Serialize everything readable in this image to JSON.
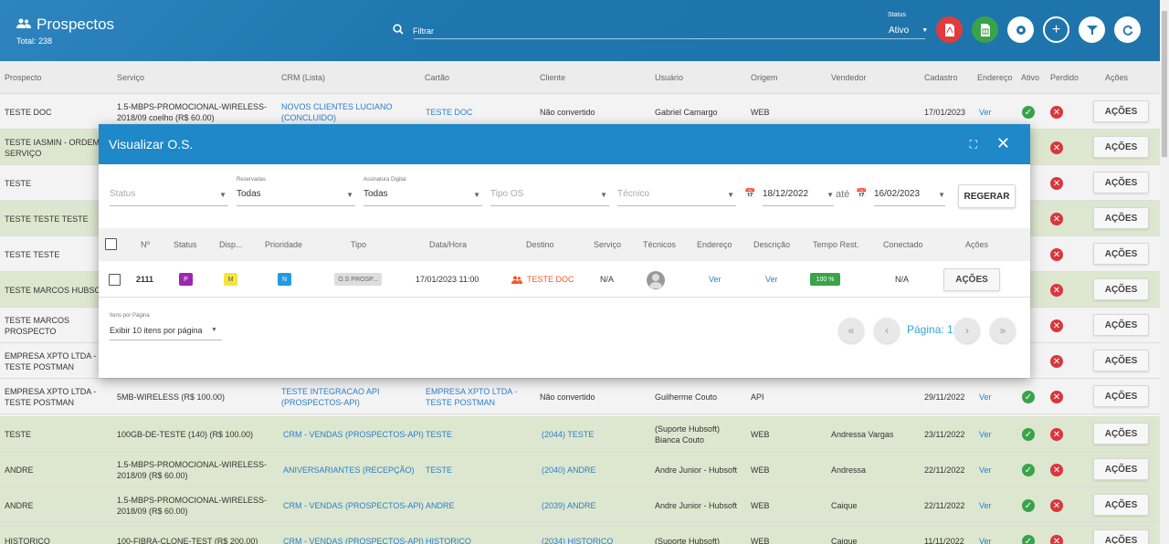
{
  "header": {
    "title": "Prospectos",
    "total": "Total: 238",
    "search_placeholder": "Filtrar",
    "status_label": "Status",
    "status_value": "Ativo",
    "buttons": [
      "pdf-icon",
      "excel-icon",
      "gear-icon",
      "plus-icon",
      "filter-icon",
      "refresh-icon"
    ]
  },
  "table": {
    "columns": [
      "Prospecto",
      "Serviço",
      "CRM (Lista)",
      "Cartão",
      "Cliente",
      "Usuário",
      "Origem",
      "Vendedor",
      "Cadastro",
      "Endereço",
      "Ativo",
      "Perdido",
      "Ações"
    ],
    "rows": [
      {
        "prospecto": "TESTE DOC",
        "servico": "1.5-MBPS-PROMOCIONAL-WIRELESS-2018/09 coelho (R$ 60.00)",
        "crm": "NOVOS CLIENTES LUCIANO (CONCLUIDO)",
        "cartao": "TESTE DOC",
        "cliente": "Não convertido",
        "usuario": "Gabriel Camargo",
        "origem": "WEB",
        "vendedor": "",
        "cadastro": "17/01/2023",
        "endereco": "Ver",
        "acoes": "AÇÕES"
      },
      {
        "prospecto": "TESTE IASMIN - ORDEM SERVIÇO",
        "acoes": "AÇÕES"
      },
      {
        "prospecto": "TESTE",
        "acoes": "AÇÕES"
      },
      {
        "prospecto": "TESTE TESTE TESTE",
        "acoes": "AÇÕES"
      },
      {
        "prospecto": "TESTE TESTE",
        "acoes": "AÇÕES"
      },
      {
        "prospecto": "TESTE MARCOS HUBSOFT",
        "acoes": "AÇÕES"
      },
      {
        "prospecto": "TESTE MARCOS PROSPECTO",
        "acoes": "AÇÕES"
      },
      {
        "prospecto": "EMPRESA XPTO LTDA - TESTE POSTMAN",
        "acoes": "AÇÕES"
      },
      {
        "prospecto": "EMPRESA XPTO LTDA - TESTE POSTMAN",
        "servico": "5MB-WIRELESS (R$ 100.00)",
        "crm": "TESTE INTEGRACAO API (PROSPECTOS-API)",
        "cartao": "EMPRESA XPTO LTDA - TESTE POSTMAN",
        "cliente": "Não convertido",
        "usuario": "Guilherme Couto",
        "origem": "API",
        "vendedor": "",
        "cadastro": "29/11/2022",
        "endereco": "Ver",
        "acoes": "AÇÕES"
      },
      {
        "prospecto": "TESTE",
        "servico": "100GB-DE-TESTE (140) (R$ 100.00)",
        "crm": "CRM - VENDAS (PROSPECTOS-API)",
        "cartao": "TESTE",
        "cliente": "(2044) TESTE",
        "usuario": "(Suporte Hubsoft) Bianca Couto",
        "origem": "WEB",
        "vendedor": "Andressa Vargas",
        "cadastro": "23/11/2022",
        "endereco": "Ver",
        "acoes": "AÇÕES"
      },
      {
        "prospecto": "ANDRE",
        "servico": "1.5-MBPS-PROMOCIONAL-WIRELESS-2018/09 (R$ 60.00)",
        "crm": "ANIVERSARIANTES (RECEPÇÃO)",
        "cartao": "TESTE",
        "cliente": "(2040) ANDRE",
        "usuario": "Andre Junior - Hubsoft",
        "origem": "WEB",
        "vendedor": "Andressa",
        "cadastro": "22/11/2022",
        "endereco": "Ver",
        "acoes": "AÇÕES"
      },
      {
        "prospecto": "ANDRE",
        "servico": "1.5-MBPS-PROMOCIONAL-WIRELESS-2018/09 (R$ 60.00)",
        "crm": "CRM - VENDAS (PROSPECTOS-API)",
        "cartao": "ANDRE",
        "cliente": "(2039) ANDRE",
        "usuario": "Andre Junior - Hubsoft",
        "origem": "WEB",
        "vendedor": "Caique",
        "cadastro": "22/11/2022",
        "endereco": "Ver",
        "acoes": "AÇÕES"
      },
      {
        "prospecto": "HISTORICO",
        "servico": "100-FIBRA-CLONE-TEST (R$ 200.00)",
        "crm": "CRM - VENDAS (PROSPECTOS-API)",
        "cartao": "HISTORICO",
        "cliente": "(2034) HISTORICO",
        "usuario": "(Suporte Hubsoft)",
        "origem": "WEB",
        "vendedor": "Caique",
        "cadastro": "11/11/2022",
        "endereco": "Ver",
        "acoes": "AÇÕES"
      }
    ]
  },
  "modal": {
    "title": "Visualizar O.S.",
    "filters": {
      "status_placeholder": "Status",
      "reservadas_label": "Reservadas",
      "reservadas_value": "Todas",
      "assinatura_label": "Assinatura Digital",
      "assinatura_value": "Todas",
      "tipo_placeholder": "Tipo OS",
      "tecnico_placeholder": "Técnico",
      "date_from": "18/12/2022",
      "ate": "até",
      "date_to": "16/02/2023",
      "regerar": "REGERAR"
    },
    "columns": [
      "Nº",
      "Status",
      "Disp...",
      "Prioridade",
      "Tipo",
      "Data/Hora",
      "Destino",
      "Serviço",
      "Técnicos",
      "Endereço",
      "Descrição",
      "Tempo Rest.",
      "Conectado",
      "Ações"
    ],
    "row": {
      "numero": "2111",
      "status": "P",
      "disp": "M",
      "prioridade": "N",
      "tipo": "O.S PROSP...",
      "data_hora": "17/01/2023 11:00",
      "destino": "TESTE DOC",
      "servico": "N/A",
      "endereco": "Ver",
      "descricao": "Ver",
      "tempo_rest": "100 %",
      "conectado": "N/A",
      "acoes": "AÇÕES"
    },
    "pager": {
      "label": "Itens por Página",
      "value": "Exibir 10 itens por página",
      "pagina": "Página: 1"
    }
  },
  "colors": {
    "header_blue": "#1e76ad",
    "modal_blue": "#1e88c9",
    "status_purple": "#9c27b0",
    "disp_yellow": "#f5e43b",
    "prioridade_blue": "#1e9be3",
    "tempo_green": "#3aa34a",
    "destino_orange": "#f05a28"
  }
}
